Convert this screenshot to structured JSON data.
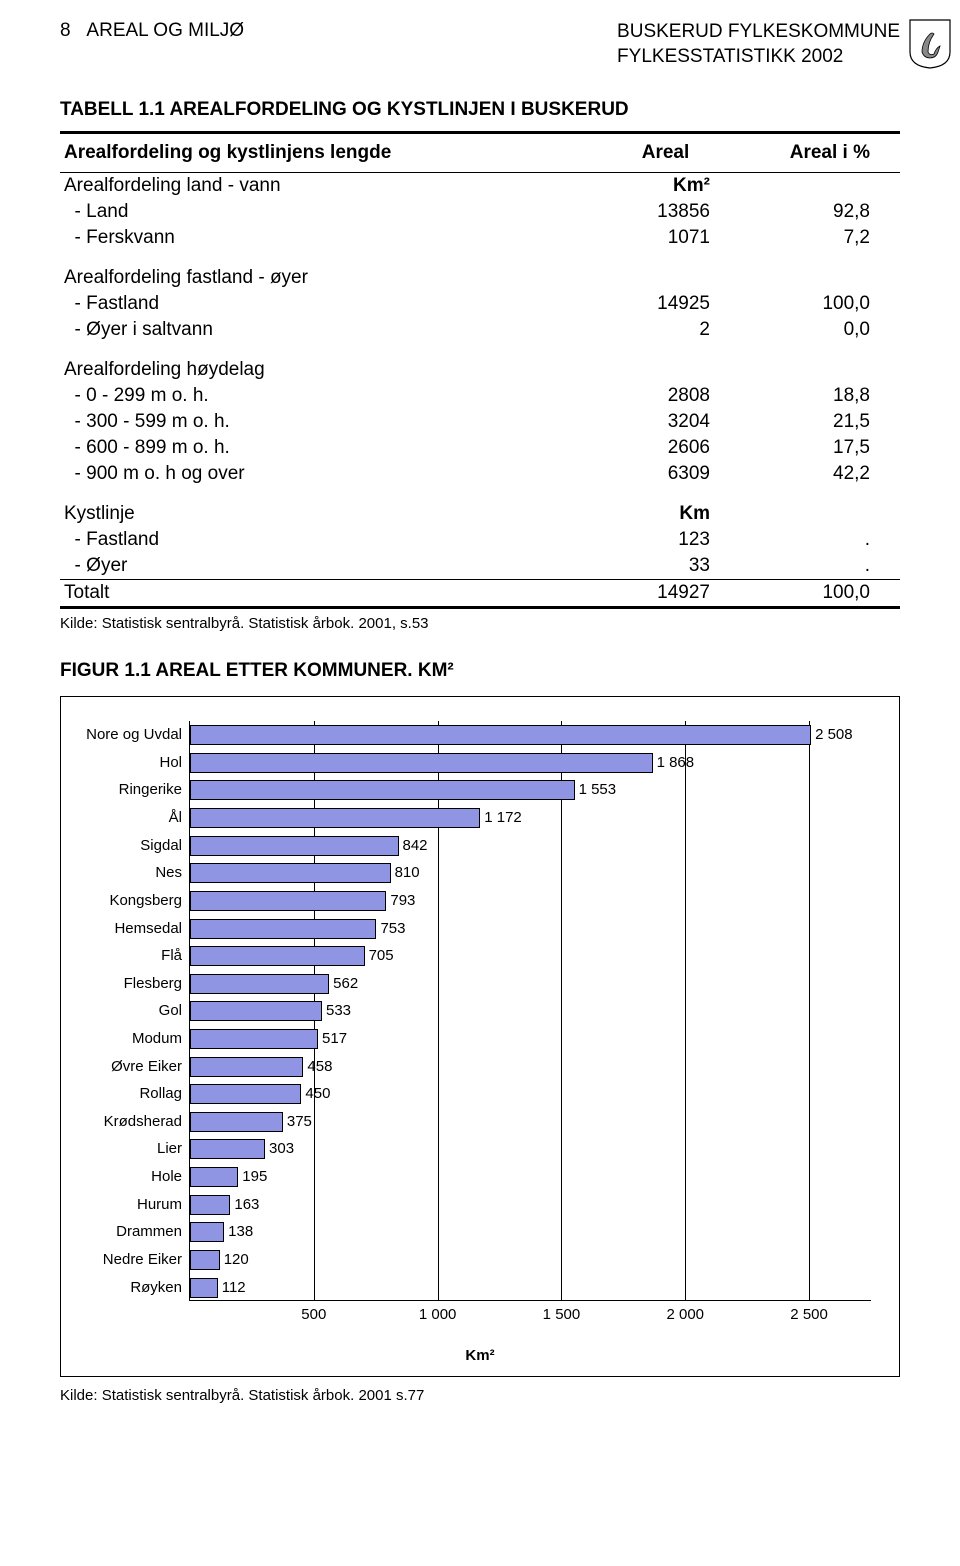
{
  "header": {
    "page_num": "8",
    "section": "AREAL OG MILJØ",
    "org": "BUSKERUD FYLKESKOMMUNE",
    "sub": "FYLKESSTATISTIKK 2002"
  },
  "table": {
    "title": "TABELL 1.1 AREALFORDELING OG KYSTLINJEN I BUSKERUD",
    "col_headers": [
      "Arealfordeling og kystlinjens lengde",
      "Areal",
      "Areal i %"
    ],
    "groups": [
      {
        "heading": "Arealfordeling land - vann",
        "unit": "Km²",
        "rows": [
          {
            "label": "- Land",
            "v1": "13856",
            "v2": "92,8"
          },
          {
            "label": "- Ferskvann",
            "v1": "1071",
            "v2": "7,2"
          }
        ]
      },
      {
        "heading": "Arealfordeling fastland - øyer",
        "unit": "",
        "rows": [
          {
            "label": "- Fastland",
            "v1": "14925",
            "v2": "100,0"
          },
          {
            "label": "- Øyer i saltvann",
            "v1": "2",
            "v2": "0,0"
          }
        ]
      },
      {
        "heading": "Arealfordeling høydelag",
        "unit": "",
        "rows": [
          {
            "label": "-   0 - 299 m o. h.",
            "v1": "2808",
            "v2": "18,8"
          },
          {
            "label": "- 300 - 599 m o. h.",
            "v1": "3204",
            "v2": "21,5"
          },
          {
            "label": "- 600 - 899 m o. h.",
            "v1": "2606",
            "v2": "17,5"
          },
          {
            "label": "- 900 m o. h og over",
            "v1": "6309",
            "v2": "42,2"
          }
        ]
      },
      {
        "heading": "Kystlinje",
        "unit": "Km",
        "rows": [
          {
            "label": "- Fastland",
            "v1": "123",
            "v2": "."
          },
          {
            "label": "- Øyer",
            "v1": "33",
            "v2": "."
          }
        ]
      }
    ],
    "total": {
      "label": "Totalt",
      "v1": "14927",
      "v2": "100,0"
    },
    "source": "Kilde: Statistisk sentralbyrå. Statistisk årbok. 2001, s.53"
  },
  "figure": {
    "title": "FIGUR 1.1 AREAL ETTER KOMMUNER. KM²",
    "type": "horizontal-bar",
    "bar_color": "#8f94e3",
    "bar_border": "#000000",
    "grid_color": "#000000",
    "background": "#ffffff",
    "xmax": 2750,
    "xticks": [
      500,
      1000,
      1500,
      2000,
      2500
    ],
    "xtick_labels": [
      "500",
      "1 000",
      "1 500",
      "2 000",
      "2 500"
    ],
    "xlabel": "Km²",
    "font_size": 15,
    "categories": [
      {
        "name": "Nore og Uvdal",
        "value": 2508,
        "label": "2 508"
      },
      {
        "name": "Hol",
        "value": 1868,
        "label": "1 868"
      },
      {
        "name": "Ringerike",
        "value": 1553,
        "label": "1 553"
      },
      {
        "name": "Ål",
        "value": 1172,
        "label": "1 172"
      },
      {
        "name": "Sigdal",
        "value": 842,
        "label": "842"
      },
      {
        "name": "Nes",
        "value": 810,
        "label": "810"
      },
      {
        "name": "Kongsberg",
        "value": 793,
        "label": "793"
      },
      {
        "name": "Hemsedal",
        "value": 753,
        "label": "753"
      },
      {
        "name": "Flå",
        "value": 705,
        "label": "705"
      },
      {
        "name": "Flesberg",
        "value": 562,
        "label": "562"
      },
      {
        "name": "Gol",
        "value": 533,
        "label": "533"
      },
      {
        "name": "Modum",
        "value": 517,
        "label": "517"
      },
      {
        "name": "Øvre Eiker",
        "value": 458,
        "label": "458"
      },
      {
        "name": "Rollag",
        "value": 450,
        "label": "450"
      },
      {
        "name": "Krødsherad",
        "value": 375,
        "label": "375"
      },
      {
        "name": "Lier",
        "value": 303,
        "label": "303"
      },
      {
        "name": "Hole",
        "value": 195,
        "label": "195"
      },
      {
        "name": "Hurum",
        "value": 163,
        "label": "163"
      },
      {
        "name": "Drammen",
        "value": 138,
        "label": "138"
      },
      {
        "name": "Nedre Eiker",
        "value": 120,
        "label": "120"
      },
      {
        "name": "Røyken",
        "value": 112,
        "label": "112"
      }
    ],
    "source": "Kilde: Statistisk sentralbyrå. Statistisk årbok. 2001 s.77"
  }
}
